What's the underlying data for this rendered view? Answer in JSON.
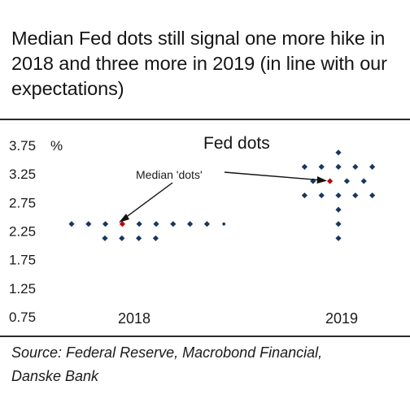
{
  "title": "Median Fed dots still signal one more hike in 2018 and three more in 2019 (in line with our expectations)",
  "source_lines": [
    "Source: Federal Reserve, Macrobond Financial,",
    "Danske Bank"
  ],
  "colors": {
    "dot": "#17375e",
    "median": "#c00000",
    "text": "#1a1a1a"
  },
  "chart_data": {
    "type": "scatter",
    "title": "Fed dots",
    "ylabel": "%",
    "categories": [
      "2018",
      "2019"
    ],
    "yticks": [
      "3.75",
      "3.25",
      "2.75",
      "2.25",
      "1.75",
      "1.25",
      "0.75"
    ],
    "ylim": [
      0.75,
      3.75
    ],
    "annotation": "Median 'dots'",
    "series": [
      {
        "category": "2018",
        "rows": [
          {
            "y": 2.375,
            "count": 10
          },
          {
            "y": 2.125,
            "count": 4
          }
        ],
        "median": 2.375
      },
      {
        "category": "2019",
        "rows": [
          {
            "y": 3.625,
            "count": 1
          },
          {
            "y": 3.375,
            "count": 5
          },
          {
            "y": 3.125,
            "count": 4
          },
          {
            "y": 2.875,
            "count": 5
          },
          {
            "y": 2.625,
            "count": 1
          },
          {
            "y": 2.375,
            "count": 1
          },
          {
            "y": 2.125,
            "count": 1
          }
        ],
        "median": 3.125
      }
    ]
  }
}
